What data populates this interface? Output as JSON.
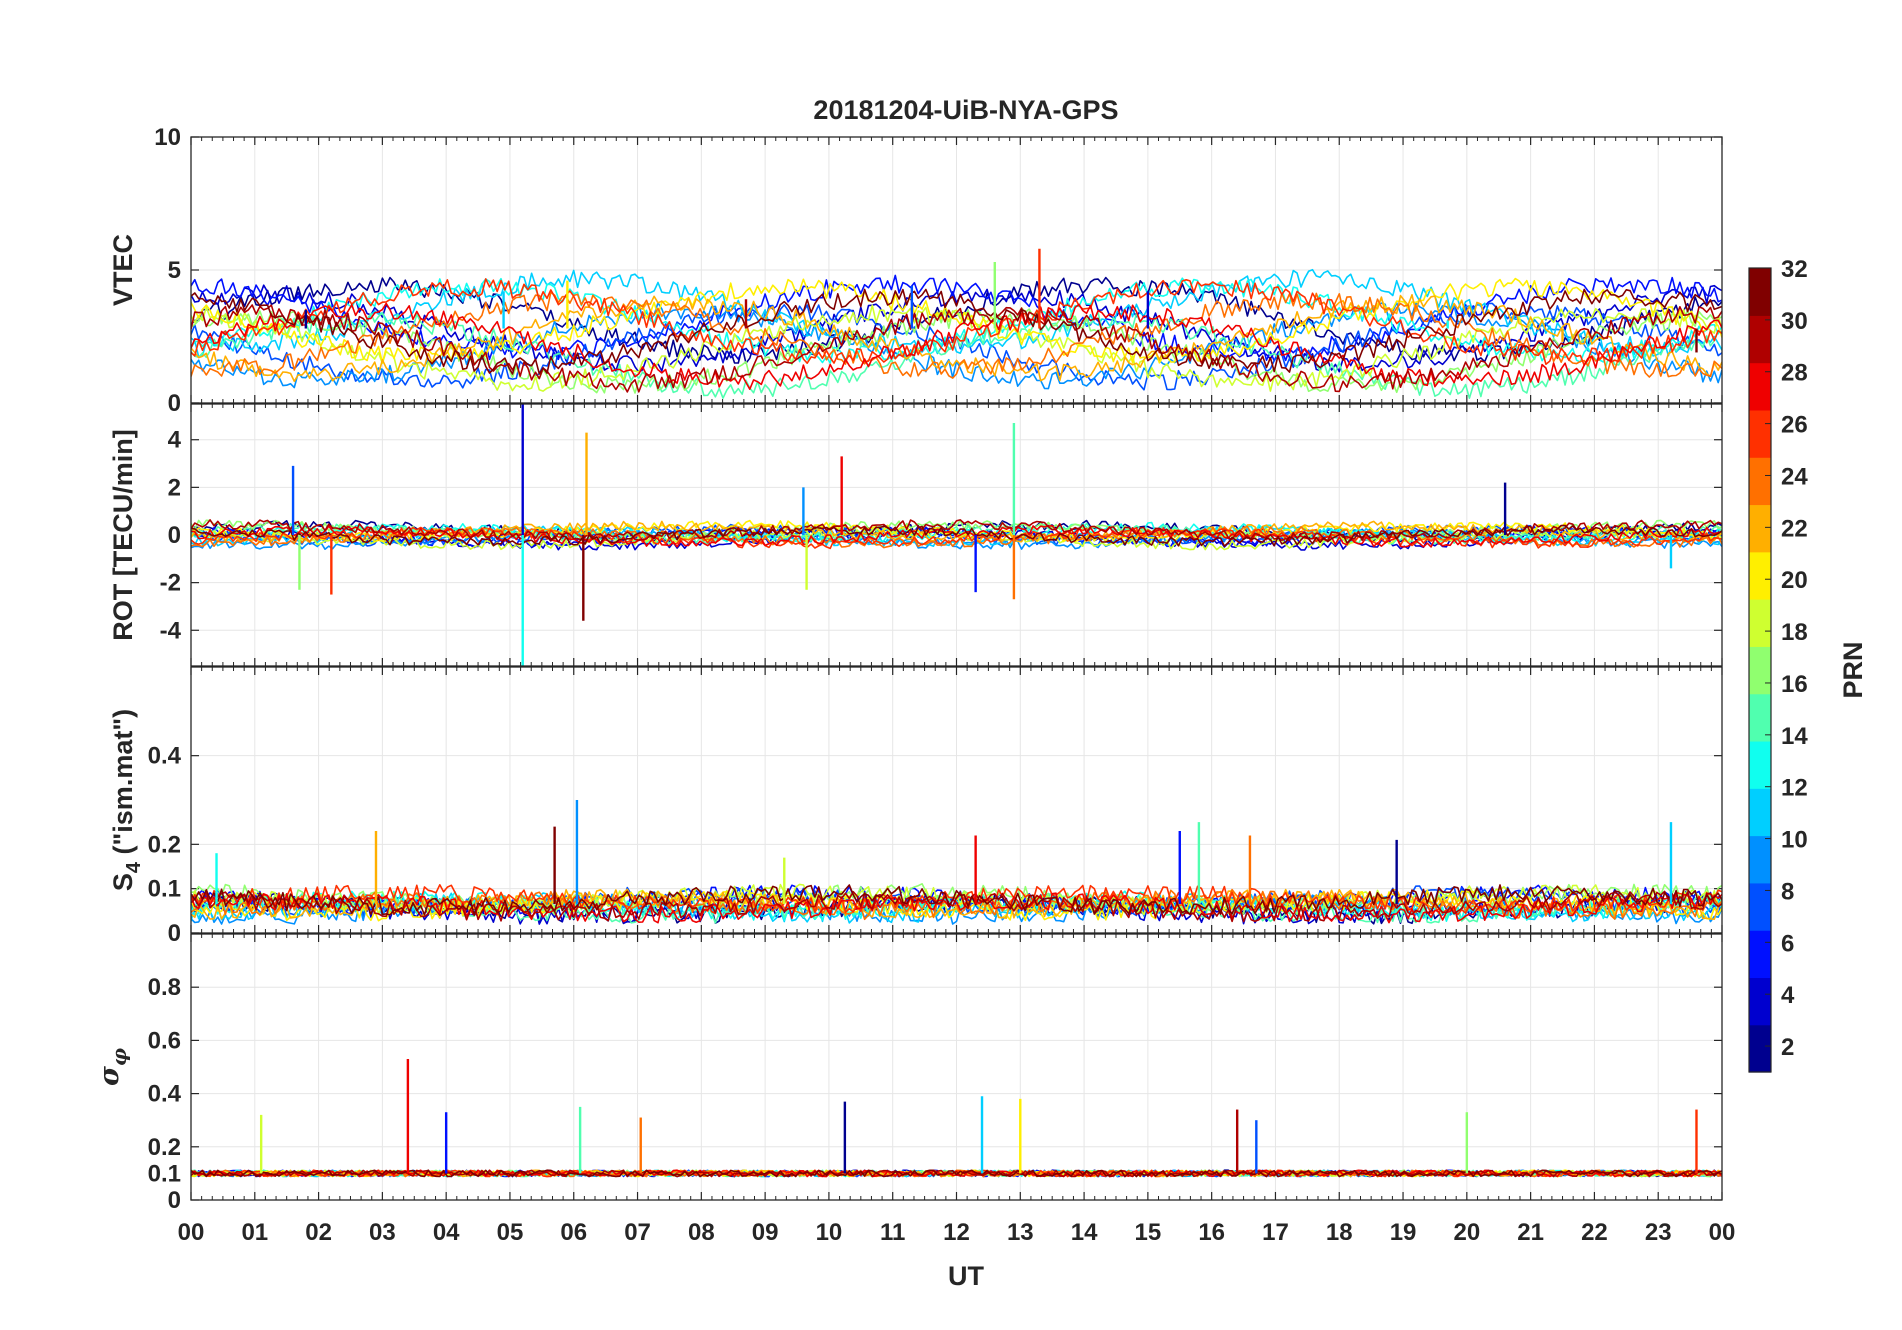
{
  "chart_data": {
    "type": "line",
    "title": "20181204-UiB-NYA-GPS",
    "xlabel": "UT",
    "x_range_hours": [
      0,
      24
    ],
    "x_tick_labels": [
      "00",
      "01",
      "02",
      "03",
      "04",
      "05",
      "06",
      "07",
      "08",
      "09",
      "10",
      "11",
      "12",
      "13",
      "14",
      "15",
      "16",
      "17",
      "18",
      "19",
      "20",
      "21",
      "22",
      "23",
      "00"
    ],
    "grid": true,
    "colorbar": {
      "label": "PRN",
      "range": [
        1,
        32
      ],
      "tick_labels": [
        "2",
        "4",
        "6",
        "8",
        "10",
        "12",
        "14",
        "16",
        "18",
        "20",
        "22",
        "24",
        "26",
        "28",
        "30",
        "32"
      ],
      "colormap": "jet",
      "position": "right"
    },
    "panels": [
      {
        "ylabel": "VTEC",
        "ylim": [
          0,
          10
        ],
        "ytick_labels": [
          "0",
          "5",
          "10"
        ],
        "baseline": 2.8,
        "amplitude": 1.3,
        "noise": 0.35,
        "floor": 0,
        "features": [
          {
            "x": 1.8,
            "y": 3.5
          },
          {
            "x": 4.9,
            "y": 4.2
          },
          {
            "x": 5.9,
            "y": 4.6
          },
          {
            "x": 8.7,
            "y": 3.9
          },
          {
            "x": 11.3,
            "y": 4.4
          },
          {
            "x": 12.6,
            "y": 5.3
          },
          {
            "x": 13.3,
            "y": 5.8
          },
          {
            "x": 15.0,
            "y": 4.2
          },
          {
            "x": 19.7,
            "y": 3.1
          },
          {
            "x": 21.5,
            "y": 2.3
          },
          {
            "x": 23.6,
            "y": 1.9
          }
        ]
      },
      {
        "ylabel": "ROT [TECU/min]",
        "ylim": [
          -5.5,
          5.5
        ],
        "ytick_labels": [
          "-4",
          "-2",
          "0",
          "2",
          "4"
        ],
        "baseline": 0,
        "amplitude": 0.25,
        "noise": 0.2,
        "floor": null,
        "features": [
          {
            "x": 1.6,
            "y": 2.9
          },
          {
            "x": 1.7,
            "y": -2.3
          },
          {
            "x": 2.2,
            "y": -2.5
          },
          {
            "x": 5.2,
            "y": 5.5
          },
          {
            "x": 5.2,
            "y": -5.5
          },
          {
            "x": 6.2,
            "y": 4.3
          },
          {
            "x": 6.15,
            "y": -3.6
          },
          {
            "x": 9.6,
            "y": 2.0
          },
          {
            "x": 9.65,
            "y": -2.3
          },
          {
            "x": 10.2,
            "y": 3.3
          },
          {
            "x": 12.3,
            "y": -2.4
          },
          {
            "x": 12.9,
            "y": 4.7
          },
          {
            "x": 12.9,
            "y": -2.7
          },
          {
            "x": 20.6,
            "y": 2.2
          },
          {
            "x": 23.2,
            "y": -1.4
          }
        ]
      },
      {
        "ylabel": "S4 (\"ism.mat\")",
        "ylabel_main": "S",
        "ylabel_sub": "4",
        "ylabel_rest": " (\"ism.mat\")",
        "ylim": [
          0,
          0.6
        ],
        "ytick_labels": [
          "0",
          "0.1",
          "0.2",
          "0.4"
        ],
        "baseline": 0.065,
        "amplitude": 0.015,
        "noise": 0.02,
        "floor": 0.02,
        "features": [
          {
            "x": 0.4,
            "y": 0.18
          },
          {
            "x": 2.9,
            "y": 0.23
          },
          {
            "x": 5.7,
            "y": 0.24
          },
          {
            "x": 6.05,
            "y": 0.3
          },
          {
            "x": 9.3,
            "y": 0.17
          },
          {
            "x": 12.3,
            "y": 0.22
          },
          {
            "x": 15.5,
            "y": 0.23
          },
          {
            "x": 15.8,
            "y": 0.25
          },
          {
            "x": 16.6,
            "y": 0.22
          },
          {
            "x": 18.9,
            "y": 0.21
          },
          {
            "x": 23.2,
            "y": 0.25
          }
        ]
      },
      {
        "ylabel": "σφ",
        "ylabel_main": "σ",
        "ylabel_sub": "φ",
        "ylim": [
          0,
          1.0
        ],
        "ytick_labels": [
          "0",
          "0.1",
          "0.2",
          "0.4",
          "0.6",
          "0.8"
        ],
        "baseline": 0.1,
        "amplitude": 0.0,
        "noise": 0.012,
        "floor": 0.05,
        "features": [
          {
            "x": 1.1,
            "y": 0.32
          },
          {
            "x": 3.4,
            "y": 0.53
          },
          {
            "x": 4.0,
            "y": 0.33
          },
          {
            "x": 6.1,
            "y": 0.35
          },
          {
            "x": 7.05,
            "y": 0.31
          },
          {
            "x": 10.25,
            "y": 0.37
          },
          {
            "x": 12.4,
            "y": 0.39
          },
          {
            "x": 13.0,
            "y": 0.38
          },
          {
            "x": 16.4,
            "y": 0.34
          },
          {
            "x": 16.7,
            "y": 0.3
          },
          {
            "x": 20.0,
            "y": 0.33
          },
          {
            "x": 23.6,
            "y": 0.34
          }
        ]
      }
    ],
    "series": [
      {
        "prn": 1,
        "color": "#00008f"
      },
      {
        "prn": 3,
        "color": "#0000cf"
      },
      {
        "prn": 5,
        "color": "#0010ff"
      },
      {
        "prn": 7,
        "color": "#0050ff"
      },
      {
        "prn": 9,
        "color": "#0090ff"
      },
      {
        "prn": 11,
        "color": "#00cfff"
      },
      {
        "prn": 13,
        "color": "#10ffef"
      },
      {
        "prn": 15,
        "color": "#50ffaf"
      },
      {
        "prn": 17,
        "color": "#90ff6f"
      },
      {
        "prn": 19,
        "color": "#cfff30"
      },
      {
        "prn": 21,
        "color": "#ffef00"
      },
      {
        "prn": 23,
        "color": "#ffaf00"
      },
      {
        "prn": 25,
        "color": "#ff7000"
      },
      {
        "prn": 27,
        "color": "#ff3000"
      },
      {
        "prn": 29,
        "color": "#ef0000"
      },
      {
        "prn": 31,
        "color": "#af0000"
      },
      {
        "prn": 32,
        "color": "#800000"
      }
    ]
  }
}
